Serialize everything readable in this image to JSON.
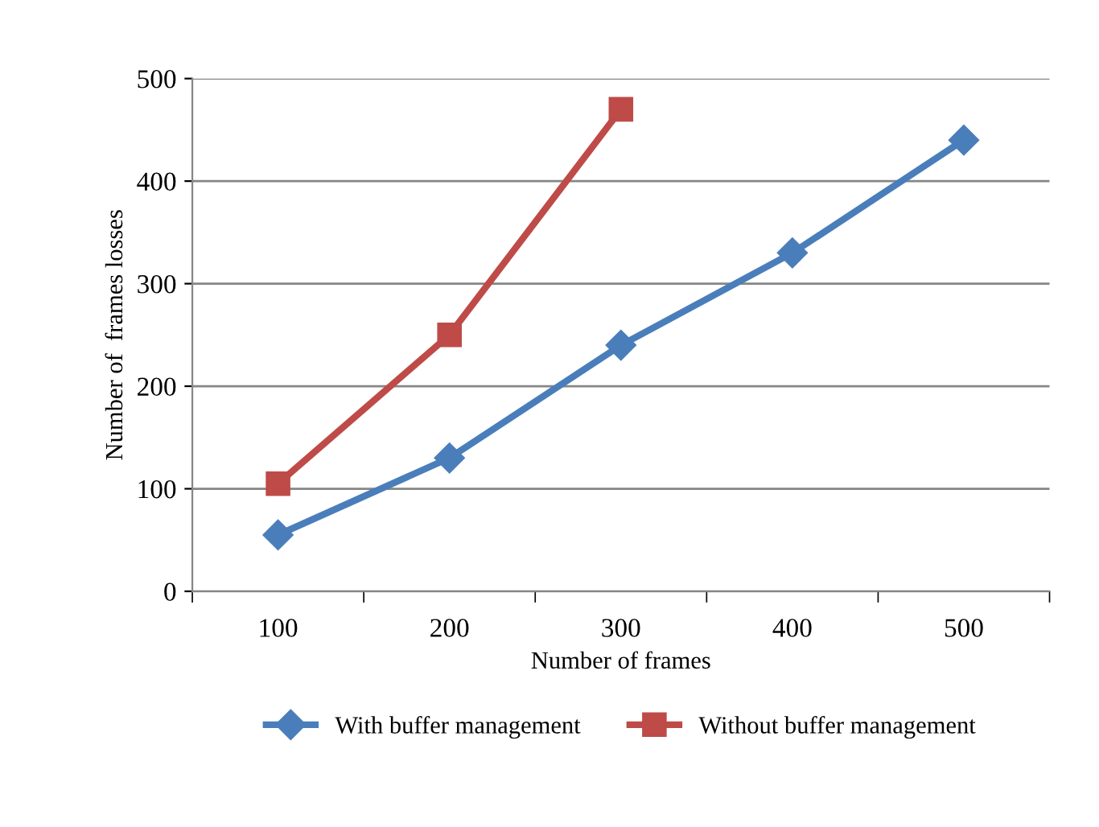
{
  "chart_data": {
    "type": "line",
    "xlabel": "Number of frames",
    "ylabel": "Number of  frames losses",
    "categories": [
      "100",
      "200",
      "300",
      "400",
      "500"
    ],
    "series": [
      {
        "name": "With buffer management",
        "color": "#4a7ebb",
        "marker": "diamond",
        "values": [
          55,
          130,
          240,
          330,
          440
        ]
      },
      {
        "name": "Without buffer management",
        "color": "#be4b48",
        "marker": "square",
        "values": [
          105,
          250,
          470,
          null,
          null
        ]
      }
    ],
    "ylim": [
      0,
      500
    ],
    "yticks": [
      0,
      100,
      200,
      300,
      400,
      500
    ],
    "grid": "y",
    "legend": "bottom",
    "line_style": "solid"
  }
}
